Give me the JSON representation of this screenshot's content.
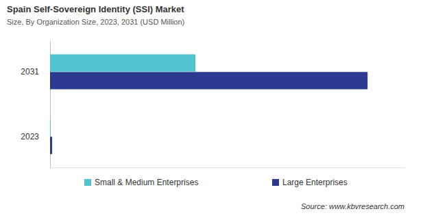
{
  "chart_data": {
    "type": "bar",
    "orientation": "horizontal",
    "title": "Spain Self-Sovereign Identity (SSI) Market",
    "subtitle": "Size, By Organization Size, 2023, 2031 (USD Million)",
    "source": "Source: www.kbvresearch.com",
    "categories": [
      "2031",
      "2023"
    ],
    "series": [
      {
        "name": "Small & Medium Enterprises",
        "color": "#4fc4cf",
        "values": [
          102.5,
          0.5
        ]
      },
      {
        "name": "Large Enterprises",
        "color": "#2b3990",
        "values": [
          224,
          1.5
        ]
      }
    ],
    "xlim": [
      0,
      250
    ],
    "xticks": [],
    "grid": false,
    "legend": "bottom",
    "tick_labels": "y"
  }
}
